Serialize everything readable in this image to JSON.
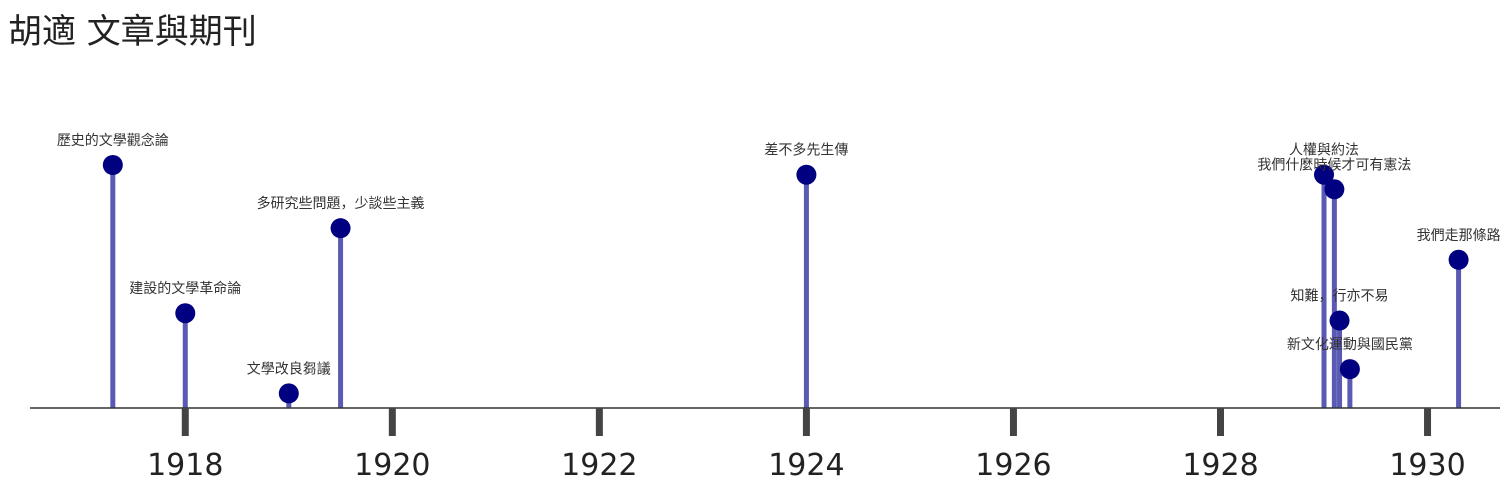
{
  "page": {
    "title": "胡適 文章與期刊"
  },
  "colors": {
    "stem": "#5a5ab4",
    "marker": "#000080",
    "axis": "#333333",
    "tick": "#444444"
  },
  "chart_data": {
    "type": "timeline",
    "title": "胡適 文章與期刊",
    "xlim": [
      1916.5,
      1930.7
    ],
    "ylim": [
      0,
      5
    ],
    "x_ticks": [
      1918,
      1920,
      1922,
      1924,
      1926,
      1928,
      1930
    ],
    "events": [
      {
        "label": "歷史的文學觀念論",
        "x": 1917.3,
        "y": 5.0
      },
      {
        "label": "建設的文學革命論",
        "x": 1918.0,
        "y": 1.95
      },
      {
        "label": "文學改良芻議",
        "x": 1919.0,
        "y": 0.3
      },
      {
        "label": "多研究些問題，少談些主義",
        "x": 1919.5,
        "y": 3.7
      },
      {
        "label": "差不多先生傳",
        "x": 1924.0,
        "y": 4.8
      },
      {
        "label": "人權與約法",
        "x": 1929.0,
        "y": 4.8
      },
      {
        "label": "我們什麼時候才可有憲法",
        "x": 1929.1,
        "y": 4.5
      },
      {
        "label": "知難，行亦不易",
        "x": 1929.15,
        "y": 1.8
      },
      {
        "label": "新文化運動與國民黨",
        "x": 1929.25,
        "y": 0.8
      },
      {
        "label": "我們走那條路",
        "x": 1930.3,
        "y": 3.05
      }
    ]
  }
}
